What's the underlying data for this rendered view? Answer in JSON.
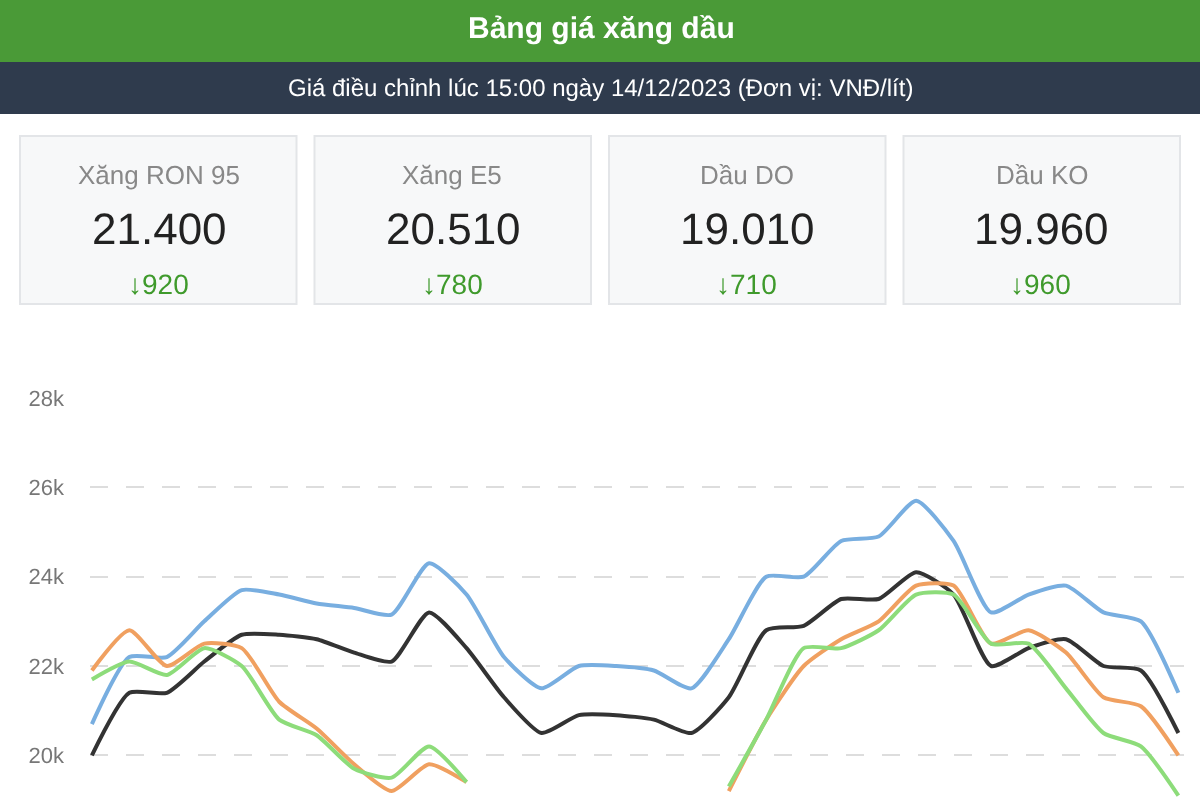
{
  "chart_data": [
    {
      "type": "other",
      "title": "Bảng giá xăng dầu",
      "subtitle": "Giá điều chỉnh lúc 15:00 ngày 14/12/2023 (Đơn vị: VNĐ/lít)",
      "categories": [
        "Xăng RON 95",
        "Xăng E5",
        "Dầu DO",
        "Dầu KO"
      ],
      "series": [
        {
          "values": [
            21400,
            20510,
            19010,
            19960
          ],
          "value_labels": [
            "21.400",
            "20.510",
            "19.010",
            "19.960"
          ]
        },
        {
          "color": "#3f9a2c",
          "values": [
            920,
            780,
            710,
            960
          ],
          "value_labels": [
            "↓920",
            "↓780",
            "↓710",
            "↓960"
          ]
        }
      ]
    },
    {
      "type": "line",
      "categories": [
        null,
        null,
        null,
        null,
        null,
        null,
        null,
        null,
        null,
        null,
        null,
        null,
        null,
        null,
        null,
        null,
        null,
        null,
        null,
        null,
        null,
        null,
        null,
        null,
        null,
        null,
        null,
        null,
        null,
        null
      ],
      "ylim": [
        19000,
        28000
      ],
      "yticks": [
        {
          "value": 20000,
          "label": "20k"
        },
        {
          "value": 22000,
          "label": "22k"
        },
        {
          "value": 24000,
          "label": "24k"
        },
        {
          "value": 26000,
          "label": "26k"
        },
        {
          "value": 28000,
          "label": "28k"
        }
      ],
      "grid": "y",
      "marker": "none",
      "line_style": "solid",
      "series": [
        {
          "color": "#78aee0",
          "values": [
            20700,
            22200,
            22200,
            23000,
            23700,
            23600,
            23400,
            23300,
            23150,
            24300,
            23600,
            22200,
            21500,
            22000,
            22000,
            21900,
            21500,
            22600,
            24000,
            24000,
            24800,
            24900,
            25700,
            24800,
            23200,
            23600,
            23800,
            23200,
            23000,
            21400
          ]
        },
        {
          "color": "#333333",
          "values": [
            20000,
            21400,
            21400,
            22100,
            22700,
            22700,
            22600,
            22300,
            22100,
            23200,
            22400,
            21300,
            20500,
            20900,
            20900,
            20800,
            20500,
            21300,
            22800,
            22900,
            23500,
            23500,
            24100,
            23600,
            22000,
            22400,
            22600,
            22000,
            21900,
            20500
          ]
        },
        {
          "color": "#f0a060",
          "values": [
            21900,
            22800,
            22000,
            22500,
            22400,
            21200,
            20600,
            19800,
            19200,
            19800,
            19400,
            null,
            null,
            null,
            null,
            null,
            null,
            19200,
            20800,
            22000,
            22600,
            23000,
            23800,
            23800,
            22500,
            22800,
            22300,
            21300,
            21100,
            20000
          ]
        },
        {
          "color": "#8ddc7a",
          "values": [
            21700,
            22100,
            21800,
            22400,
            22000,
            20800,
            20450,
            19700,
            19500,
            20200,
            19400,
            null,
            null,
            null,
            null,
            null,
            null,
            19300,
            20800,
            22400,
            22400,
            22800,
            23600,
            23600,
            22500,
            22500,
            21500,
            20500,
            20200,
            19100
          ]
        }
      ]
    }
  ]
}
